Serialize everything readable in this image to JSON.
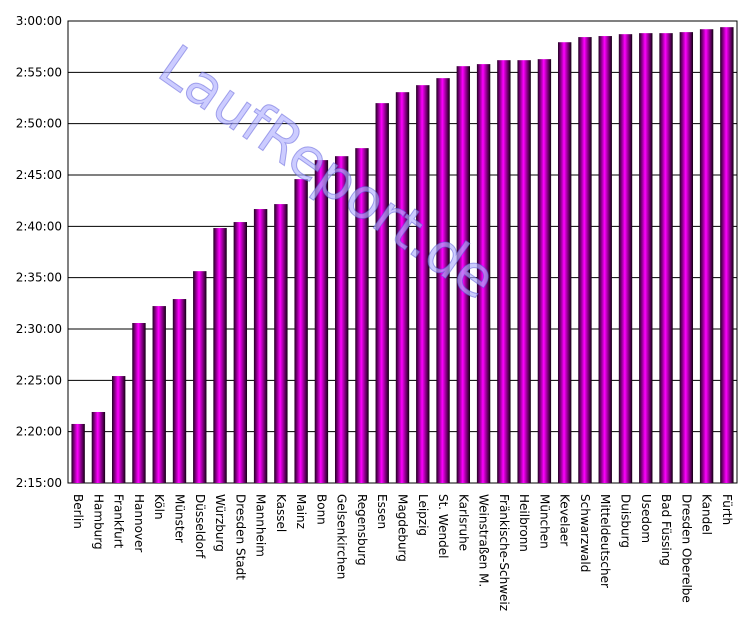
{
  "chart_data": {
    "type": "bar",
    "watermark": "LaufReport.de",
    "categories": [
      "Berlin",
      "Hamburg",
      "Frankfurt",
      "Hannover",
      "Köln",
      "Münster",
      "Düsseldorf",
      "Würzburg",
      "Dresden Stadt",
      "Mannheim",
      "Kassel",
      "Mainz",
      "Bonn",
      "Gelsenkirchen",
      "Regensburg",
      "Essen",
      "Magdeburg",
      "Leipzig",
      "St. Wendel",
      "Karlsruhe",
      "Weinstraßen M.",
      "Fränkische-Schweiz",
      "Heilbronn",
      "München",
      "Kevelaer",
      "Schwarzwald",
      "Mitteldeutscher",
      "Duisburg",
      "Usedom",
      "Bad Füssing",
      "Dresden Oberelbe",
      "Kandel",
      "Fürth"
    ],
    "values": [
      8445,
      8515,
      8725,
      9035,
      9134,
      9175,
      9338,
      9590,
      9625,
      9701,
      9730,
      9876,
      9987,
      10010,
      10057,
      10320,
      10384,
      10425,
      10466,
      10536,
      10548,
      10571,
      10571,
      10577,
      10676,
      10706,
      10712,
      10723,
      10729,
      10729,
      10735,
      10752,
      10764
    ],
    "color": "#ff00ff",
    "ylim": [
      8100,
      10800
    ],
    "yticks": [
      {
        "value": 8100,
        "label": "2:15:00"
      },
      {
        "value": 8400,
        "label": "2:20:00"
      },
      {
        "value": 8700,
        "label": "2:25:00"
      },
      {
        "value": 9000,
        "label": "2:30:00"
      },
      {
        "value": 9300,
        "label": "2:35:00"
      },
      {
        "value": 9600,
        "label": "2:40:00"
      },
      {
        "value": 9900,
        "label": "2:45:00"
      },
      {
        "value": 10200,
        "label": "2:50:00"
      },
      {
        "value": 10500,
        "label": "2:55:00"
      },
      {
        "value": 10800,
        "label": "3:00:00"
      }
    ],
    "grid": true
  }
}
